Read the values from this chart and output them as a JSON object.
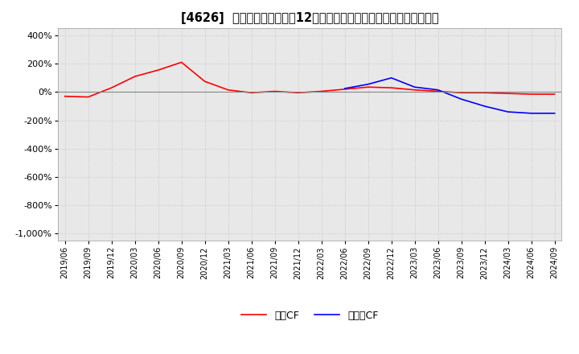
{
  "title": "[4626]  キャッシュフローの12か月移動合計の対前年同期増減率の推移",
  "legend_labels": [
    "営業CF",
    "フリーCF"
  ],
  "line_colors": [
    "#ff0000",
    "#0000ff"
  ],
  "x_labels": [
    "2019/06",
    "2019/09",
    "2019/12",
    "2020/03",
    "2020/06",
    "2020/09",
    "2020/12",
    "2021/03",
    "2021/06",
    "2021/09",
    "2021/12",
    "2022/03",
    "2022/06",
    "2022/09",
    "2022/12",
    "2023/03",
    "2023/06",
    "2023/09",
    "2023/12",
    "2024/03",
    "2024/06",
    "2024/09"
  ],
  "営業CF": [
    -30,
    -35,
    30,
    110,
    155,
    210,
    75,
    15,
    -5,
    5,
    -5,
    5,
    20,
    35,
    30,
    15,
    5,
    -5,
    -5,
    -10,
    -15,
    -15
  ],
  "フリーCF": [
    null,
    null,
    null,
    null,
    null,
    null,
    null,
    null,
    null,
    null,
    null,
    null,
    25,
    55,
    100,
    35,
    15,
    -50,
    -100,
    -140,
    -150,
    -150
  ],
  "ylim": [
    -1050,
    450
  ],
  "yticks": [
    400,
    200,
    0,
    -200,
    -400,
    -600,
    -800,
    -1000
  ],
  "background_color": "#ffffff",
  "plot_bg_color": "#e8e8e8",
  "grid_color": "#c0c0c0",
  "title_fontsize": 10.5,
  "line_width": 1.2
}
